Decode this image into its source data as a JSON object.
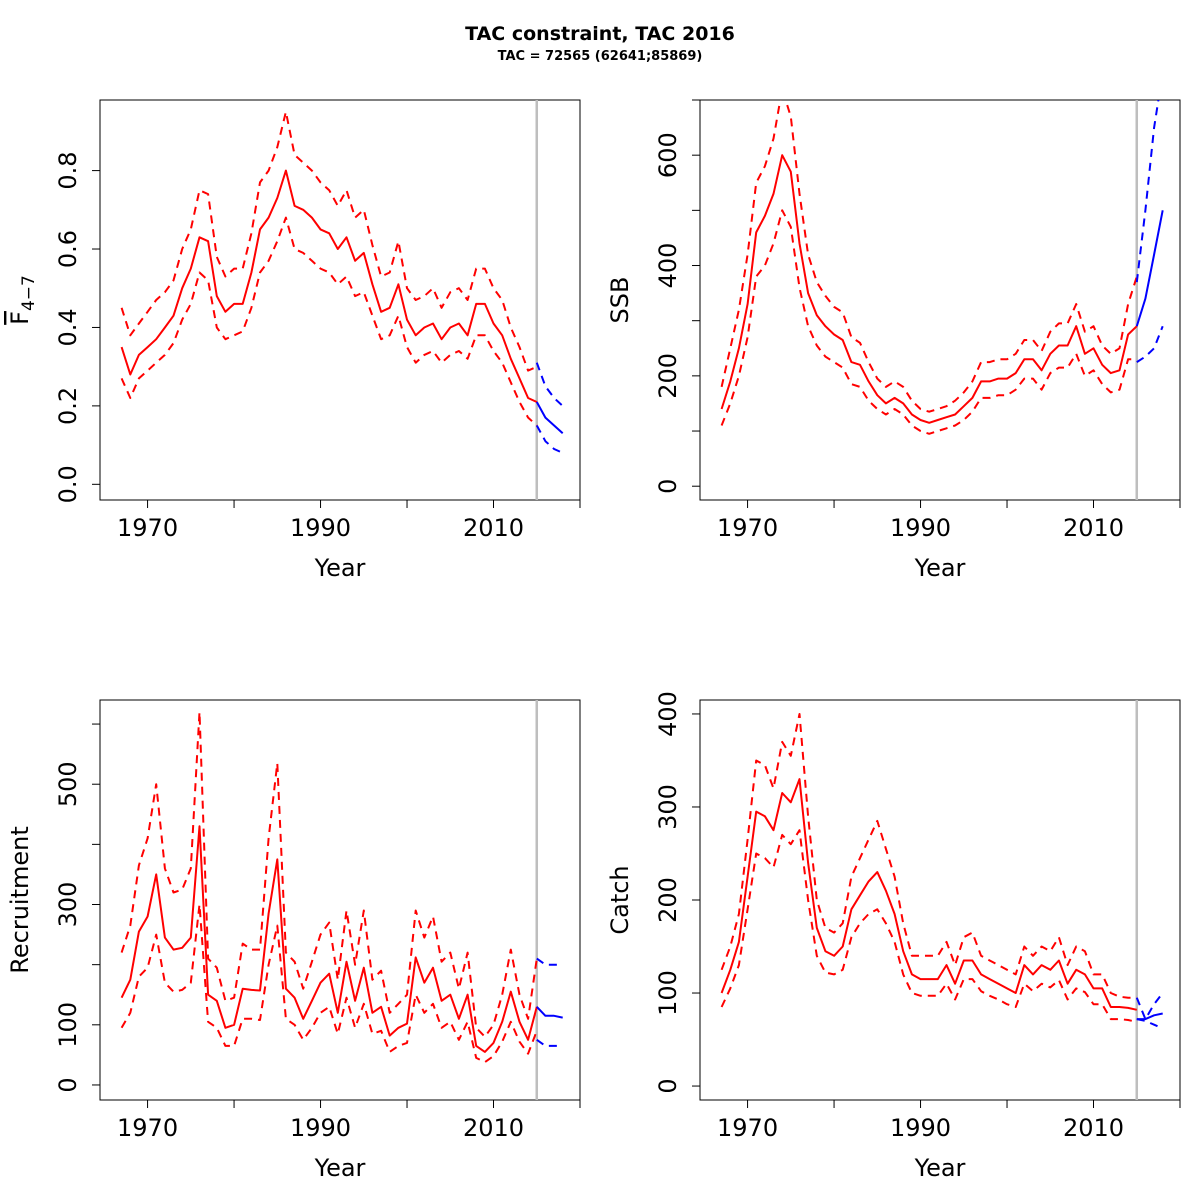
{
  "title": "TAC constraint, TAC 2016",
  "subtitle": "TAC = 72565 (62641;85869)",
  "colors": {
    "historical": "#ff0000",
    "forecast": "#0000ff",
    "divider": "#bebebe",
    "axis": "#000000"
  },
  "chart_data": [
    {
      "type": "line",
      "ylabel": "F",
      "ylabel_subscript": "4−7",
      "xlabel": "Year",
      "xlim": [
        1964.5,
        2020
      ],
      "ylim": [
        -0.04,
        0.98
      ],
      "x_ticks": [
        1970,
        1980,
        1990,
        2000,
        2010,
        2020
      ],
      "x_tick_labels": [
        "1970",
        "",
        "1990",
        "",
        "2010",
        ""
      ],
      "y_ticks": [
        0.0,
        0.2,
        0.4,
        0.6,
        0.8
      ],
      "y_tick_labels": [
        "0.0",
        "0.2",
        "0.4",
        "0.6",
        "0.8"
      ],
      "divider_x": 2015,
      "historical": {
        "x": [
          1967,
          1968,
          1969,
          1970,
          1971,
          1972,
          1973,
          1974,
          1975,
          1976,
          1977,
          1978,
          1979,
          1980,
          1981,
          1982,
          1983,
          1984,
          1985,
          1986,
          1987,
          1988,
          1989,
          1990,
          1991,
          1992,
          1993,
          1994,
          1995,
          1996,
          1997,
          1998,
          1999,
          2000,
          2001,
          2002,
          2003,
          2004,
          2005,
          2006,
          2007,
          2008,
          2009,
          2010,
          2011,
          2012,
          2013,
          2014,
          2015
        ],
        "mid": [
          0.35,
          0.28,
          0.33,
          0.35,
          0.37,
          0.4,
          0.43,
          0.5,
          0.55,
          0.63,
          0.62,
          0.48,
          0.44,
          0.46,
          0.46,
          0.54,
          0.65,
          0.68,
          0.73,
          0.8,
          0.71,
          0.7,
          0.68,
          0.65,
          0.64,
          0.6,
          0.63,
          0.57,
          0.59,
          0.51,
          0.44,
          0.45,
          0.51,
          0.42,
          0.38,
          0.4,
          0.41,
          0.37,
          0.4,
          0.41,
          0.38,
          0.46,
          0.46,
          0.41,
          0.38,
          0.32,
          0.27,
          0.22,
          0.21
        ],
        "lower": [
          0.27,
          0.22,
          0.27,
          0.29,
          0.31,
          0.33,
          0.36,
          0.42,
          0.46,
          0.54,
          0.52,
          0.4,
          0.37,
          0.38,
          0.39,
          0.45,
          0.54,
          0.57,
          0.62,
          0.68,
          0.6,
          0.59,
          0.57,
          0.55,
          0.54,
          0.51,
          0.53,
          0.48,
          0.49,
          0.43,
          0.37,
          0.38,
          0.43,
          0.35,
          0.31,
          0.33,
          0.34,
          0.31,
          0.33,
          0.34,
          0.32,
          0.38,
          0.38,
          0.34,
          0.31,
          0.26,
          0.21,
          0.17,
          0.15
        ],
        "upper": [
          0.45,
          0.38,
          0.41,
          0.44,
          0.47,
          0.49,
          0.52,
          0.6,
          0.65,
          0.75,
          0.74,
          0.58,
          0.53,
          0.55,
          0.55,
          0.64,
          0.77,
          0.8,
          0.86,
          0.95,
          0.84,
          0.82,
          0.8,
          0.77,
          0.75,
          0.71,
          0.75,
          0.68,
          0.7,
          0.61,
          0.53,
          0.54,
          0.62,
          0.5,
          0.47,
          0.48,
          0.5,
          0.45,
          0.49,
          0.5,
          0.47,
          0.55,
          0.55,
          0.5,
          0.47,
          0.4,
          0.35,
          0.29,
          0.3
        ]
      },
      "forecast": {
        "x": [
          2015,
          2016,
          2017,
          2018
        ],
        "mid": [
          0.21,
          0.17,
          0.15,
          0.13
        ],
        "lower": [
          0.15,
          0.11,
          0.09,
          0.08
        ],
        "upper": [
          0.31,
          0.25,
          0.22,
          0.2
        ]
      }
    },
    {
      "type": "line",
      "ylabel": "SSB",
      "xlabel": "Year",
      "xlim": [
        1964.5,
        2020
      ],
      "ylim": [
        -25,
        700
      ],
      "x_ticks": [
        1970,
        1980,
        1990,
        2000,
        2010,
        2020
      ],
      "x_tick_labels": [
        "1970",
        "",
        "1990",
        "",
        "2010",
        ""
      ],
      "y_ticks": [
        0,
        100,
        200,
        300,
        400,
        500,
        600,
        700
      ],
      "y_tick_labels": [
        "0",
        "",
        "200",
        "",
        "400",
        "",
        "600",
        ""
      ],
      "divider_x": 2015,
      "historical": {
        "x": [
          1967,
          1968,
          1969,
          1970,
          1971,
          1972,
          1973,
          1974,
          1975,
          1976,
          1977,
          1978,
          1979,
          1980,
          1981,
          1982,
          1983,
          1984,
          1985,
          1986,
          1987,
          1988,
          1989,
          1990,
          1991,
          1992,
          1993,
          1994,
          1995,
          1996,
          1997,
          1998,
          1999,
          2000,
          2001,
          2002,
          2003,
          2004,
          2005,
          2006,
          2007,
          2008,
          2009,
          2010,
          2011,
          2012,
          2013,
          2014,
          2015
        ],
        "mid": [
          140,
          190,
          250,
          330,
          460,
          490,
          530,
          600,
          570,
          440,
          350,
          310,
          290,
          275,
          265,
          225,
          220,
          190,
          165,
          150,
          160,
          150,
          130,
          120,
          115,
          120,
          125,
          130,
          145,
          160,
          190,
          190,
          195,
          195,
          205,
          230,
          230,
          210,
          240,
          255,
          255,
          290,
          240,
          250,
          220,
          205,
          210,
          275,
          290
        ],
        "lower": [
          110,
          150,
          200,
          270,
          380,
          400,
          440,
          500,
          470,
          360,
          290,
          255,
          235,
          225,
          215,
          185,
          180,
          155,
          140,
          130,
          140,
          130,
          110,
          100,
          95,
          100,
          105,
          110,
          120,
          135,
          160,
          160,
          165,
          165,
          175,
          195,
          195,
          175,
          205,
          215,
          215,
          240,
          200,
          210,
          185,
          170,
          175,
          230,
          230
        ],
        "upper": [
          180,
          250,
          320,
          420,
          550,
          580,
          630,
          720,
          670,
          530,
          420,
          370,
          345,
          325,
          315,
          270,
          260,
          225,
          195,
          180,
          190,
          180,
          155,
          140,
          135,
          140,
          145,
          155,
          170,
          190,
          225,
          225,
          230,
          230,
          240,
          265,
          265,
          245,
          280,
          295,
          295,
          330,
          280,
          290,
          255,
          240,
          250,
          330,
          380
        ]
      },
      "forecast": {
        "x": [
          2015,
          2016,
          2017,
          2018
        ],
        "mid": [
          290,
          340,
          420,
          500
        ],
        "lower": [
          225,
          235,
          250,
          290
        ],
        "upper": [
          370,
          500,
          650,
          750
        ]
      }
    },
    {
      "type": "line",
      "ylabel": "Recruitment",
      "xlabel": "Year",
      "xlim": [
        1964.5,
        2020
      ],
      "ylim": [
        -25,
        640
      ],
      "x_ticks": [
        1970,
        1980,
        1990,
        2000,
        2010,
        2020
      ],
      "x_tick_labels": [
        "1970",
        "",
        "1990",
        "",
        "2010",
        ""
      ],
      "y_ticks": [
        0,
        100,
        200,
        300,
        400,
        500,
        600
      ],
      "y_tick_labels": [
        "0",
        "100",
        "",
        "300",
        "",
        "500",
        ""
      ],
      "divider_x": 2015,
      "historical": {
        "x": [
          1967,
          1968,
          1969,
          1970,
          1971,
          1972,
          1973,
          1974,
          1975,
          1976,
          1977,
          1978,
          1979,
          1980,
          1981,
          1982,
          1983,
          1984,
          1985,
          1986,
          1987,
          1988,
          1989,
          1990,
          1991,
          1992,
          1993,
          1994,
          1995,
          1996,
          1997,
          1998,
          1999,
          2000,
          2001,
          2002,
          2003,
          2004,
          2005,
          2006,
          2007,
          2008,
          2009,
          2010,
          2011,
          2012,
          2013,
          2014,
          2015
        ],
        "mid": [
          145,
          175,
          255,
          280,
          350,
          245,
          225,
          228,
          245,
          430,
          150,
          140,
          95,
          100,
          160,
          158,
          157,
          285,
          375,
          160,
          145,
          110,
          140,
          170,
          185,
          120,
          205,
          140,
          195,
          120,
          130,
          82,
          95,
          102,
          212,
          170,
          195,
          140,
          150,
          110,
          150,
          65,
          55,
          70,
          105,
          155,
          105,
          75,
          130
        ],
        "lower": [
          95,
          120,
          180,
          195,
          250,
          170,
          155,
          158,
          170,
          300,
          105,
          95,
          65,
          65,
          110,
          110,
          108,
          200,
          265,
          110,
          100,
          75,
          95,
          120,
          130,
          85,
          145,
          95,
          135,
          85,
          90,
          55,
          65,
          70,
          150,
          120,
          135,
          95,
          105,
          75,
          105,
          45,
          38,
          48,
          72,
          105,
          72,
          52,
          90
        ],
        "upper": [
          220,
          265,
          365,
          410,
          500,
          360,
          320,
          325,
          360,
          620,
          210,
          195,
          140,
          145,
          235,
          225,
          225,
          410,
          535,
          220,
          205,
          160,
          205,
          250,
          270,
          175,
          290,
          200,
          290,
          175,
          190,
          120,
          135,
          150,
          290,
          245,
          280,
          205,
          220,
          160,
          220,
          95,
          80,
          100,
          150,
          225,
          150,
          110,
          210
        ]
      },
      "forecast": {
        "x": [
          2015,
          2016,
          2017,
          2018
        ],
        "mid": [
          130,
          115,
          115,
          112
        ],
        "lower": [
          75,
          65,
          65,
          65
        ],
        "upper": [
          210,
          200,
          200,
          200
        ]
      }
    },
    {
      "type": "line",
      "ylabel": "Catch",
      "xlabel": "Year",
      "xlim": [
        1964.5,
        2020
      ],
      "ylim": [
        -15,
        415
      ],
      "x_ticks": [
        1970,
        1980,
        1990,
        2000,
        2010,
        2020
      ],
      "x_tick_labels": [
        "1970",
        "",
        "1990",
        "",
        "2010",
        ""
      ],
      "y_ticks": [
        0,
        100,
        200,
        300,
        400
      ],
      "y_tick_labels": [
        "0",
        "100",
        "200",
        "300",
        "400"
      ],
      "divider_x": 2015,
      "historical": {
        "x": [
          1967,
          1968,
          1969,
          1970,
          1971,
          1972,
          1973,
          1974,
          1975,
          1976,
          1977,
          1978,
          1979,
          1980,
          1981,
          1982,
          1983,
          1984,
          1985,
          1986,
          1987,
          1988,
          1989,
          1990,
          1991,
          1992,
          1993,
          1994,
          1995,
          1996,
          1997,
          1998,
          1999,
          2000,
          2001,
          2002,
          2003,
          2004,
          2005,
          2006,
          2007,
          2008,
          2009,
          2010,
          2011,
          2012,
          2013,
          2014,
          2015
        ],
        "mid": [
          100,
          125,
          155,
          225,
          295,
          290,
          275,
          315,
          305,
          330,
          240,
          170,
          145,
          140,
          150,
          190,
          205,
          220,
          230,
          210,
          185,
          145,
          120,
          115,
          115,
          115,
          130,
          110,
          135,
          135,
          120,
          115,
          110,
          105,
          100,
          130,
          120,
          130,
          125,
          135,
          110,
          125,
          120,
          105,
          105,
          85,
          85,
          84,
          82
        ],
        "lower": [
          85,
          105,
          130,
          190,
          250,
          245,
          235,
          270,
          260,
          275,
          200,
          140,
          122,
          120,
          125,
          160,
          175,
          185,
          190,
          175,
          155,
          120,
          100,
          97,
          97,
          97,
          110,
          93,
          115,
          115,
          102,
          97,
          93,
          88,
          85,
          110,
          102,
          110,
          106,
          114,
          93,
          105,
          101,
          88,
          88,
          72,
          72,
          71,
          69
        ],
        "upper": [
          125,
          150,
          185,
          265,
          350,
          345,
          320,
          370,
          355,
          400,
          290,
          200,
          170,
          165,
          175,
          225,
          245,
          265,
          285,
          255,
          225,
          175,
          140,
          140,
          140,
          140,
          155,
          130,
          160,
          165,
          140,
          135,
          130,
          125,
          120,
          150,
          140,
          150,
          145,
          160,
          130,
          150,
          145,
          120,
          120,
          100,
          96,
          95,
          95
        ]
      },
      "forecast": {
        "x": [
          2015,
          2016,
          2017,
          2018
        ],
        "mid": [
          72,
          72,
          76,
          78
        ],
        "lower": [
          72,
          70,
          66,
          62
        ],
        "upper": [
          95,
          72,
          88,
          100
        ]
      }
    }
  ]
}
